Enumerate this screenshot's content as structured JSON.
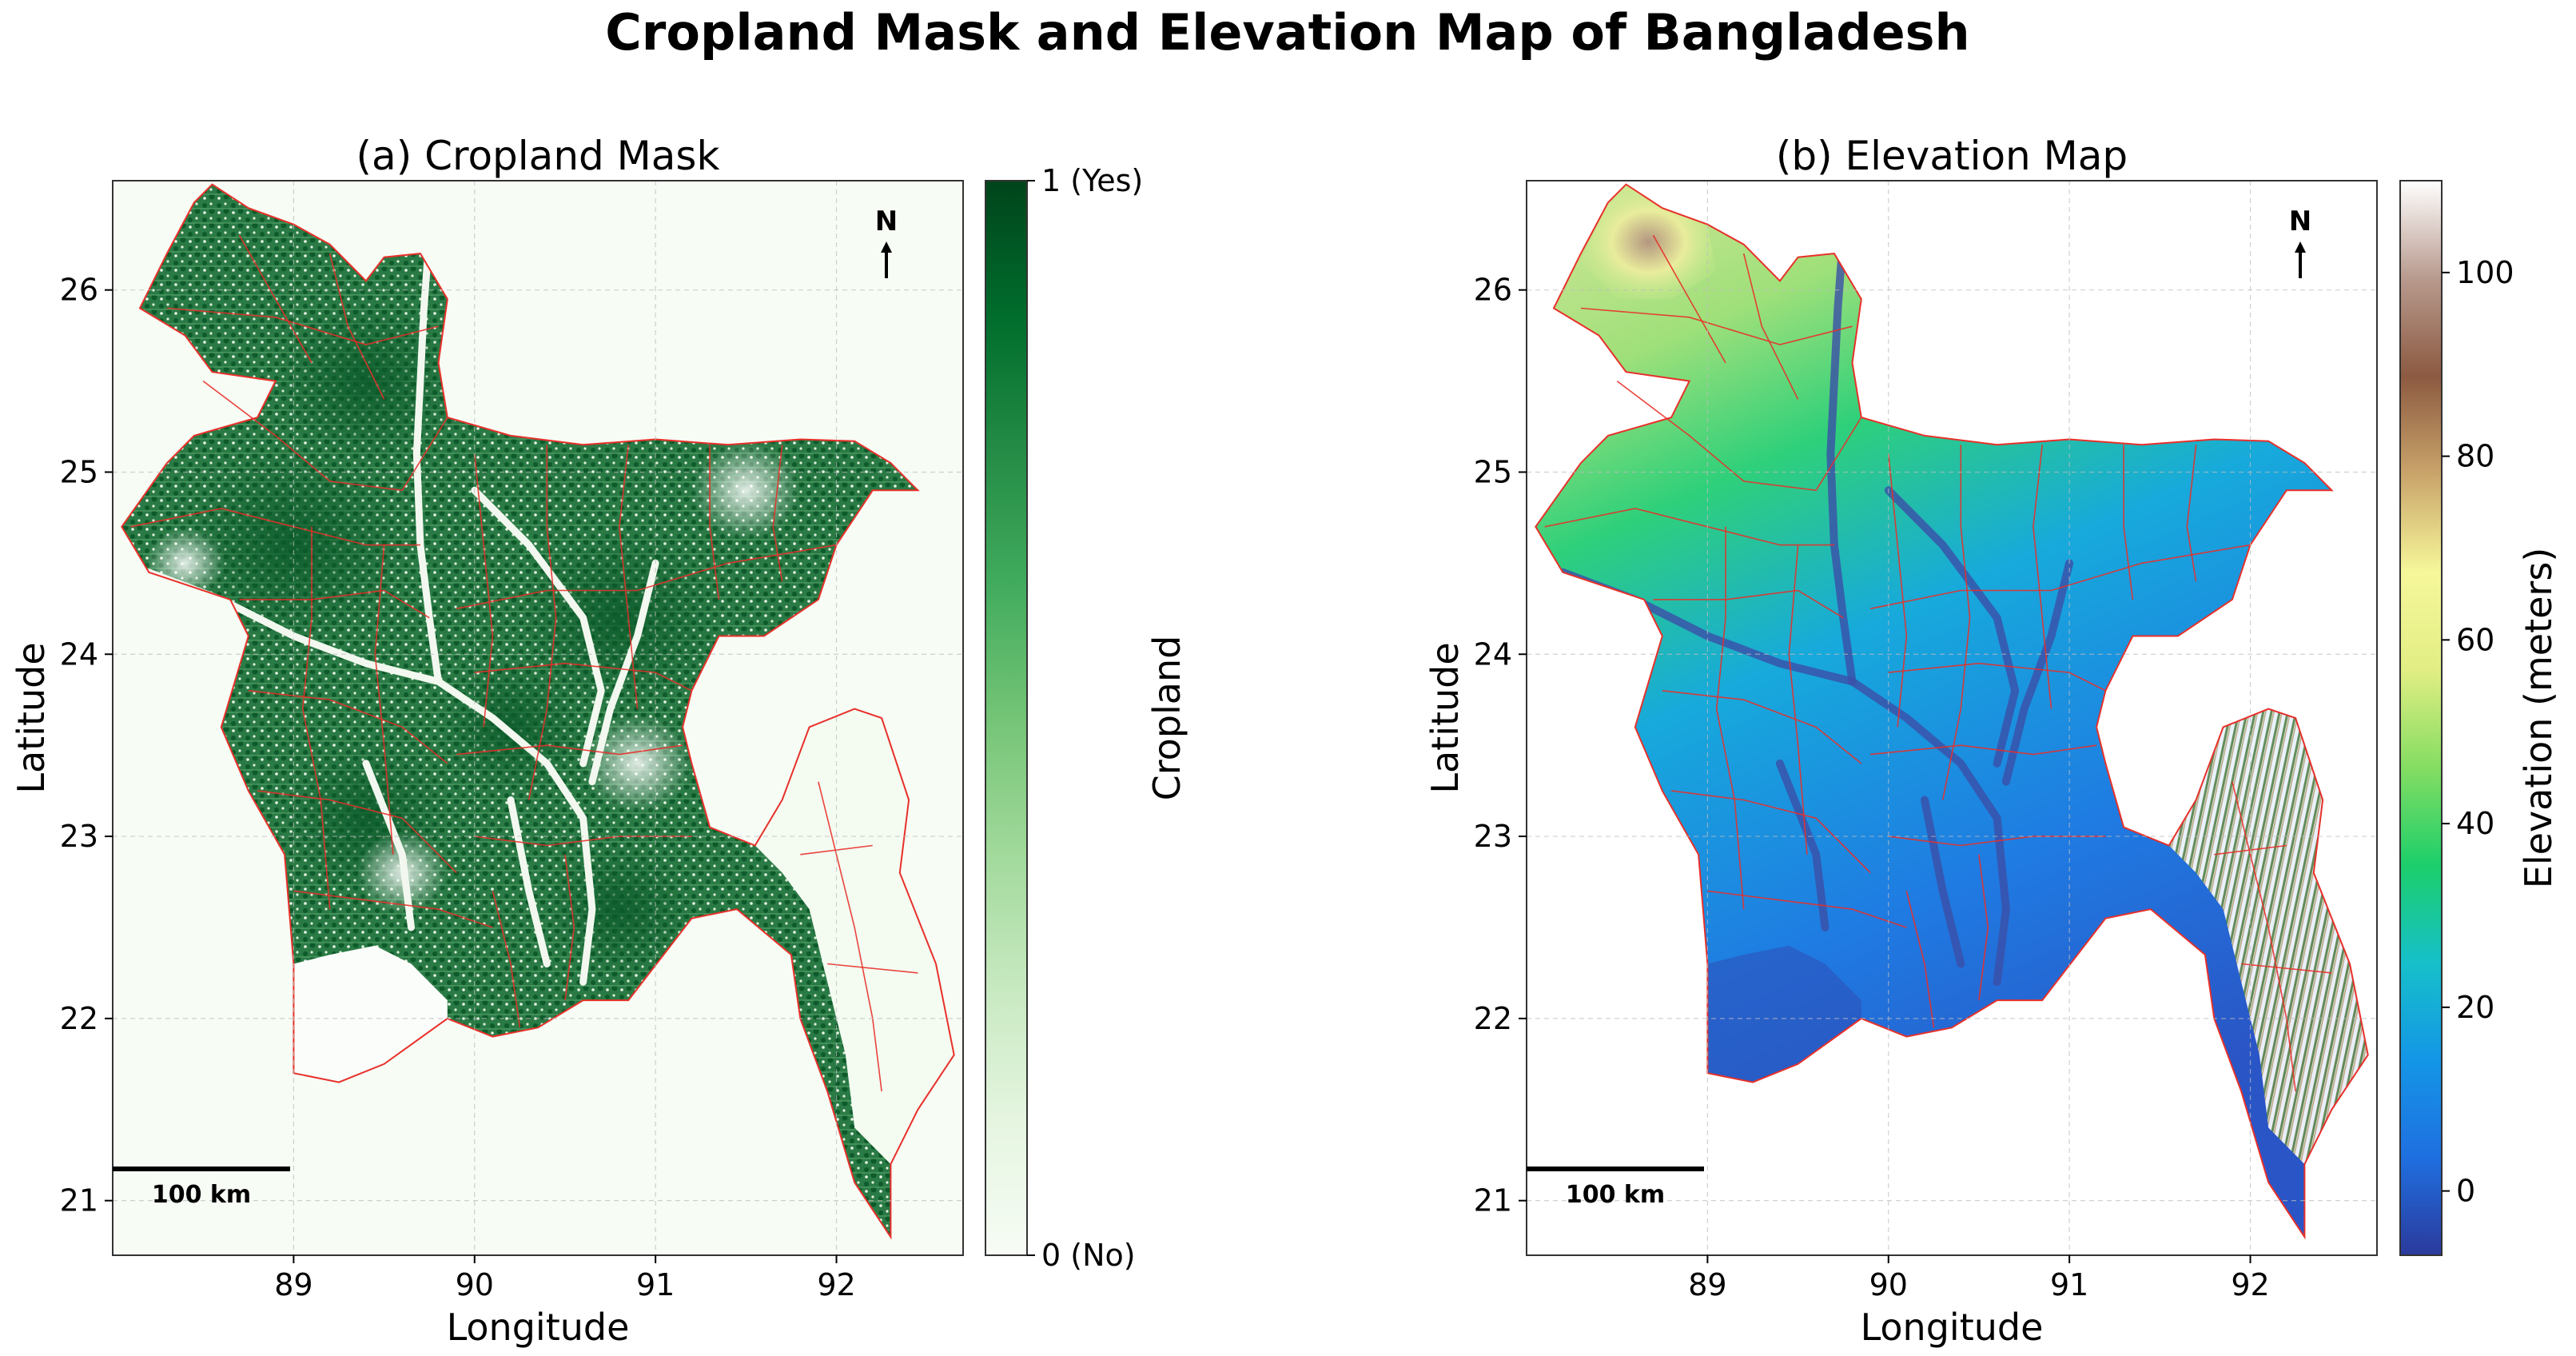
{
  "title": "Cropland Mask and Elevation Map of Bangladesh",
  "colors": {
    "border": "#e8302a",
    "crop_dark": "#00441b",
    "crop_light": "#f7fcf5",
    "water": "#ffffff"
  },
  "panels": [
    {
      "id": "a",
      "title": "(a) Cropland Mask",
      "xlabel": "Longitude",
      "ylabel": "Latitude",
      "xlim": [
        88.0,
        92.7
      ],
      "ylim": [
        20.7,
        26.6
      ],
      "xticks": [
        {
          "v": 89,
          "label": "89"
        },
        {
          "v": 90,
          "label": "90"
        },
        {
          "v": 91,
          "label": "91"
        },
        {
          "v": 92,
          "label": "92"
        }
      ],
      "yticks": [
        {
          "v": 21,
          "label": "21"
        },
        {
          "v": 22,
          "label": "22"
        },
        {
          "v": 23,
          "label": "23"
        },
        {
          "v": 24,
          "label": "24"
        },
        {
          "v": 25,
          "label": "25"
        },
        {
          "v": 26,
          "label": "26"
        }
      ],
      "grid": true,
      "background": "#f7fcf5",
      "north_label": "N",
      "scale_bar_label": "100 km",
      "colorbar": {
        "label": "Cropland",
        "range": [
          0,
          1
        ],
        "ticks": [
          {
            "v": 0,
            "label": "0 (No)"
          },
          {
            "v": 1,
            "label": "1 (Yes)"
          }
        ],
        "stops": [
          "#f7fcf5",
          "#e5f5e0",
          "#c7e9c0",
          "#a1d99b",
          "#74c476",
          "#41ab5d",
          "#238b45",
          "#006d2c",
          "#00441b"
        ]
      }
    },
    {
      "id": "b",
      "title": "(b) Elevation Map",
      "xlabel": "Longitude",
      "ylabel": "Latitude",
      "xlim": [
        88.0,
        92.7
      ],
      "ylim": [
        20.7,
        26.6
      ],
      "xticks": [
        {
          "v": 89,
          "label": "89"
        },
        {
          "v": 90,
          "label": "90"
        },
        {
          "v": 91,
          "label": "91"
        },
        {
          "v": 92,
          "label": "92"
        }
      ],
      "yticks": [
        {
          "v": 21,
          "label": "21"
        },
        {
          "v": 22,
          "label": "22"
        },
        {
          "v": 23,
          "label": "23"
        },
        {
          "v": 24,
          "label": "24"
        },
        {
          "v": 25,
          "label": "25"
        },
        {
          "v": 26,
          "label": "26"
        }
      ],
      "grid": true,
      "background": "#ffffff",
      "north_label": "N",
      "scale_bar_label": "100 km",
      "colorbar": {
        "label": "Elevation (meters)",
        "range": [
          -7,
          110
        ],
        "ticks": [
          {
            "v": 0,
            "label": "0"
          },
          {
            "v": 20,
            "label": "20"
          },
          {
            "v": 40,
            "label": "40"
          },
          {
            "v": 60,
            "label": "60"
          },
          {
            "v": 80,
            "label": "80"
          },
          {
            "v": 100,
            "label": "100"
          }
        ],
        "stops": [
          "#2b3a9c",
          "#1f6fe0",
          "#1496e6",
          "#16c0c9",
          "#1dcf6a",
          "#86dd62",
          "#e2ee84",
          "#f6f79a",
          "#c9a46a",
          "#8c5a41",
          "#b89a8e",
          "#ffffff"
        ]
      }
    }
  ]
}
